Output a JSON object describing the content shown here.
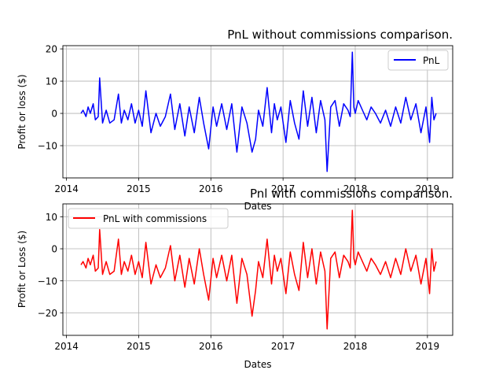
{
  "chart_data": [
    {
      "type": "line",
      "title": "PnL without commissions comparison.",
      "xlabel": "Dates",
      "ylabel": "Profit or loss ($)",
      "xlim": [
        2013.95,
        2019.35
      ],
      "ylim": [
        -20,
        21
      ],
      "x_ticks": [
        2014,
        2015,
        2016,
        2017,
        2018,
        2019
      ],
      "x_tick_labels": [
        "2014",
        "2015",
        "2016",
        "2017",
        "2018",
        "2019"
      ],
      "y_ticks": [
        -10,
        0,
        10,
        20
      ],
      "y_tick_labels": [
        "−10",
        "0",
        "10",
        "20"
      ],
      "grid": true,
      "legend": "top-right",
      "series": [
        {
          "name": "PnL",
          "color": "#0000ff",
          "x": [
            2014.2,
            2014.23,
            2014.27,
            2014.3,
            2014.33,
            2014.37,
            2014.4,
            2014.44,
            2014.46,
            2014.5,
            2014.55,
            2014.6,
            2014.66,
            2014.72,
            2014.76,
            2014.8,
            2014.85,
            2014.9,
            2014.95,
            2015.0,
            2015.05,
            2015.1,
            2015.17,
            2015.24,
            2015.3,
            2015.37,
            2015.44,
            2015.5,
            2015.57,
            2015.64,
            2015.7,
            2015.77,
            2015.84,
            2015.9,
            2015.97,
            2016.03,
            2016.08,
            2016.15,
            2016.22,
            2016.29,
            2016.36,
            2016.43,
            2016.5,
            2016.57,
            2016.62,
            2016.66,
            2016.72,
            2016.78,
            2016.84,
            2016.88,
            2016.92,
            2016.97,
            2017.04,
            2017.1,
            2017.16,
            2017.22,
            2017.28,
            2017.34,
            2017.4,
            2017.46,
            2017.52,
            2017.58,
            2017.61,
            2017.66,
            2017.72,
            2017.78,
            2017.84,
            2017.9,
            2017.93,
            2017.96,
            2017.98,
            2018.0,
            2018.04,
            2018.1,
            2018.16,
            2018.22,
            2018.28,
            2018.35,
            2018.42,
            2018.49,
            2018.56,
            2018.63,
            2018.7,
            2018.77,
            2018.84,
            2018.91,
            2018.98,
            2019.03,
            2019.06,
            2019.09,
            2019.12
          ],
          "y": [
            0,
            1,
            -1,
            2,
            0,
            3,
            -2,
            -1,
            11,
            -3,
            1,
            -3,
            -2,
            6,
            -3,
            1,
            -2,
            3,
            -3,
            1,
            -4,
            7,
            -6,
            0,
            -4,
            -1,
            6,
            -5,
            3,
            -7,
            2,
            -6,
            5,
            -3,
            -11,
            2,
            -4,
            3,
            -5,
            3,
            -12,
            2,
            -3,
            -12,
            -8,
            1,
            -4,
            8,
            -6,
            3,
            -2,
            2,
            -9,
            4,
            -3,
            -8,
            7,
            -4,
            5,
            -6,
            4,
            -2,
            -18,
            2,
            4,
            -4,
            3,
            1,
            -1,
            19,
            2,
            0,
            4,
            1,
            -2,
            2,
            0,
            -3,
            1,
            -4,
            2,
            -3,
            5,
            -2,
            3,
            -6,
            2,
            -9,
            5,
            -2,
            0
          ]
        }
      ]
    },
    {
      "type": "line",
      "title": "Pnl with commissions comparison.",
      "xlabel": "Dates",
      "ylabel": "Profit or Loss ($)",
      "xlim": [
        2013.95,
        2019.35
      ],
      "ylim": [
        -27,
        14
      ],
      "x_ticks": [
        2014,
        2015,
        2016,
        2017,
        2018,
        2019
      ],
      "x_tick_labels": [
        "2014",
        "2015",
        "2016",
        "2017",
        "2018",
        "2019"
      ],
      "y_ticks": [
        -20,
        -10,
        0,
        10
      ],
      "y_tick_labels": [
        "−20",
        "−10",
        "0",
        "10"
      ],
      "grid": true,
      "legend": "top-left",
      "series": [
        {
          "name": "PnL with commissions",
          "color": "#ff0000",
          "x": [
            2014.2,
            2014.23,
            2014.27,
            2014.3,
            2014.33,
            2014.37,
            2014.4,
            2014.44,
            2014.46,
            2014.5,
            2014.55,
            2014.6,
            2014.66,
            2014.72,
            2014.76,
            2014.8,
            2014.85,
            2014.9,
            2014.95,
            2015.0,
            2015.05,
            2015.1,
            2015.17,
            2015.24,
            2015.3,
            2015.37,
            2015.44,
            2015.5,
            2015.57,
            2015.64,
            2015.7,
            2015.77,
            2015.84,
            2015.9,
            2015.97,
            2016.03,
            2016.08,
            2016.15,
            2016.22,
            2016.29,
            2016.36,
            2016.43,
            2016.5,
            2016.57,
            2016.62,
            2016.66,
            2016.72,
            2016.78,
            2016.84,
            2016.88,
            2016.92,
            2016.97,
            2017.04,
            2017.1,
            2017.16,
            2017.22,
            2017.28,
            2017.34,
            2017.4,
            2017.46,
            2017.52,
            2017.58,
            2017.61,
            2017.66,
            2017.72,
            2017.78,
            2017.84,
            2017.9,
            2017.93,
            2017.96,
            2017.98,
            2018.0,
            2018.04,
            2018.1,
            2018.16,
            2018.22,
            2018.28,
            2018.35,
            2018.42,
            2018.49,
            2018.56,
            2018.63,
            2018.7,
            2018.77,
            2018.84,
            2018.91,
            2018.98,
            2019.03,
            2019.06,
            2019.09,
            2019.12
          ],
          "y": [
            -5,
            -4,
            -6,
            -3,
            -5,
            -2,
            -7,
            -6,
            6,
            -8,
            -4,
            -8,
            -7,
            3,
            -8,
            -4,
            -7,
            -2,
            -8,
            -4,
            -9,
            2,
            -11,
            -5,
            -9,
            -6,
            1,
            -10,
            -2,
            -12,
            -3,
            -11,
            0,
            -8,
            -16,
            -3,
            -9,
            -2,
            -10,
            -2,
            -17,
            -3,
            -8,
            -21,
            -13,
            -4,
            -9,
            3,
            -11,
            -2,
            -7,
            -3,
            -14,
            -1,
            -8,
            -13,
            2,
            -9,
            0,
            -11,
            -1,
            -7,
            -25,
            -3,
            -1,
            -9,
            -2,
            -4,
            -6,
            12,
            -3,
            -5,
            -1,
            -4,
            -7,
            -3,
            -5,
            -8,
            -4,
            -9,
            -3,
            -8,
            0,
            -7,
            -2,
            -11,
            -3,
            -14,
            0,
            -7,
            -4
          ]
        }
      ]
    }
  ]
}
